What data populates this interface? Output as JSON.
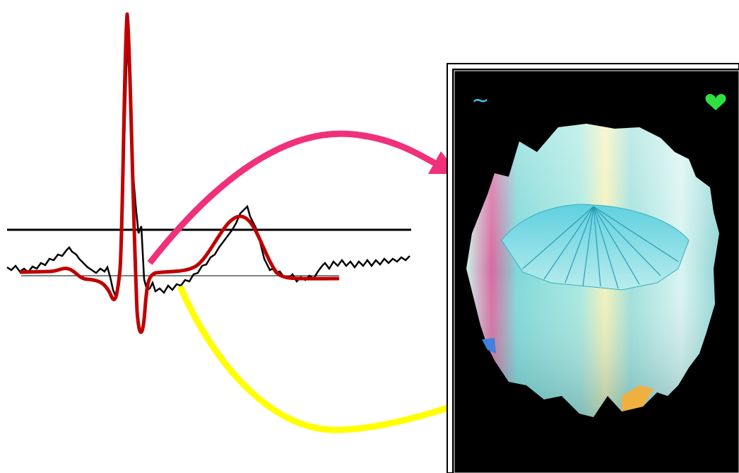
{
  "panel": {
    "wave_icon": "~"
  }
}
